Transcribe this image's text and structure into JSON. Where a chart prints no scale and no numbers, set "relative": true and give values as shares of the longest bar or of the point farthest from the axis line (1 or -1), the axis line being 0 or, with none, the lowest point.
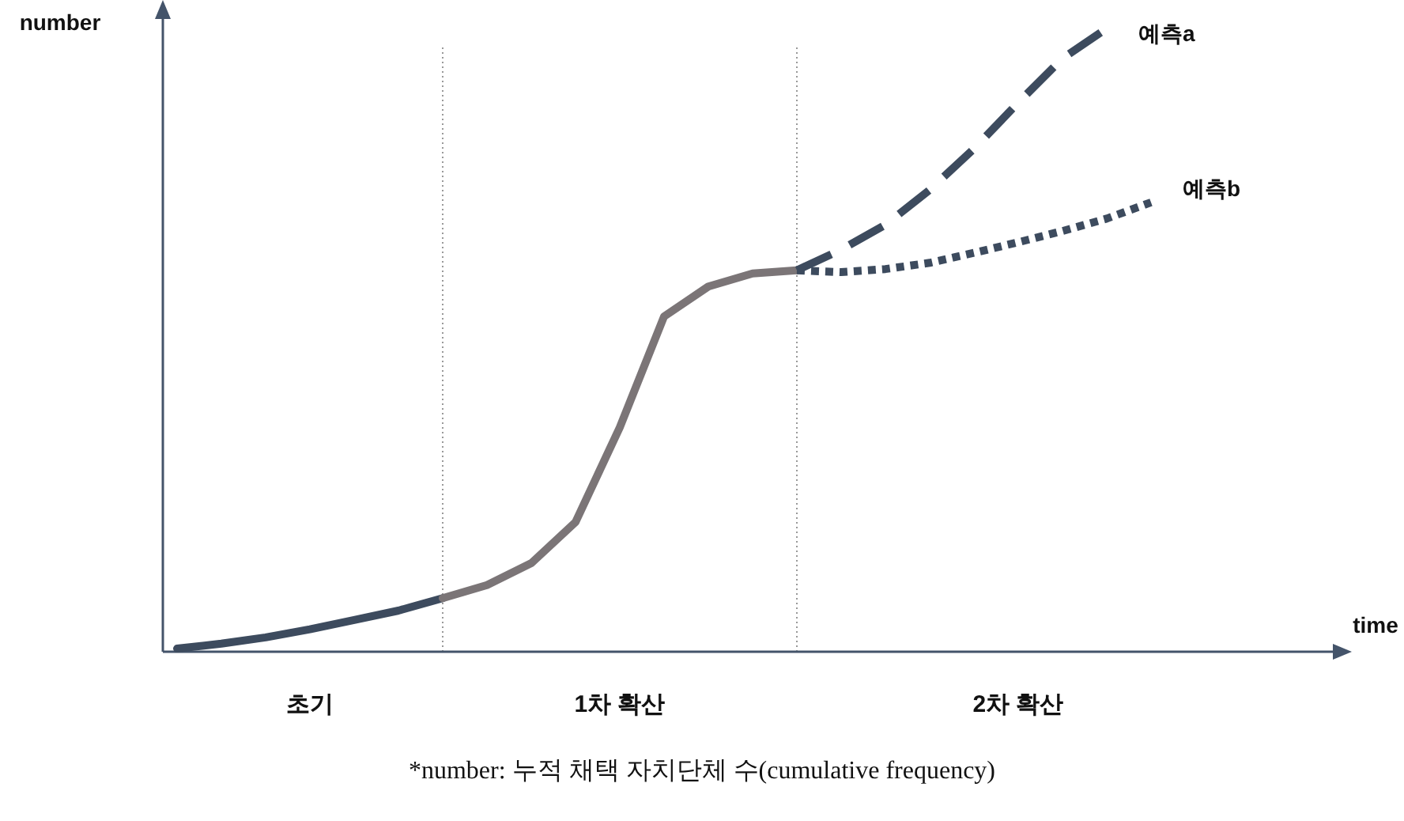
{
  "chart_data": {
    "type": "line",
    "relative": true,
    "xlabel": "time",
    "ylabel": "number",
    "categories": [
      null,
      null,
      null,
      null,
      null,
      null,
      null,
      null,
      null,
      null,
      null,
      null,
      null,
      null,
      null,
      null,
      null,
      null,
      null,
      null,
      null,
      null,
      null,
      null,
      null,
      null
    ],
    "series": [
      {
        "color": "#3d4b5e",
        "line_style": "solid",
        "values": [
          0.005,
          0.013,
          0.023,
          0.036,
          0.051,
          0.066,
          0.086,
          null,
          null,
          null,
          null,
          null,
          null,
          null,
          null,
          null,
          null,
          null,
          null,
          null,
          null,
          null,
          null,
          null,
          null,
          null
        ]
      },
      {
        "color": "#7b7577",
        "line_style": "solid",
        "values": [
          null,
          null,
          null,
          null,
          null,
          null,
          0.086,
          0.107,
          0.142,
          0.208,
          0.36,
          0.538,
          0.586,
          0.607,
          0.612,
          null,
          null,
          null,
          null,
          null,
          null,
          null,
          null,
          null,
          null,
          null
        ]
      },
      {
        "name": "예측a",
        "color": "#3d4b5e",
        "line_style": "dashed",
        "values": [
          null,
          null,
          null,
          null,
          null,
          null,
          null,
          null,
          null,
          null,
          null,
          null,
          null,
          null,
          0.612,
          0.645,
          0.685,
          0.741,
          0.807,
          0.881,
          0.952,
          1,
          null,
          null,
          null,
          null
        ]
      },
      {
        "name": "예측b",
        "color": "#3d4b5e",
        "line_style": "dotted",
        "values": [
          null,
          null,
          null,
          null,
          null,
          null,
          null,
          null,
          null,
          null,
          null,
          null,
          null,
          null,
          0.612,
          0.609,
          0.614,
          0.624,
          0.64,
          0.657,
          0.675,
          0.695,
          0.721,
          null,
          null,
          null
        ]
      }
    ],
    "annotations": [
      "초기",
      "1차 확산",
      "2차 확산",
      "*number: 누적 채택 자치단체 수(cumulative frequency)"
    ]
  }
}
